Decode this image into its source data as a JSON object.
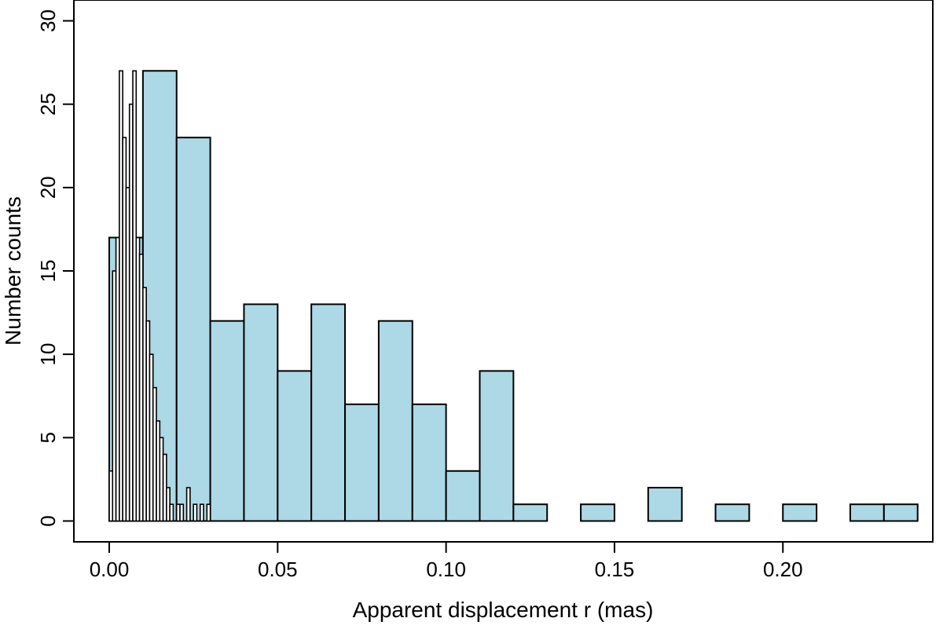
{
  "chart_data": {
    "type": "bar",
    "xlabel": "Apparent displacement r (mas)",
    "ylabel": "Number counts",
    "xlim": [
      -0.0105,
      0.2445
    ],
    "ylim": [
      -1.25,
      31.25
    ],
    "xticks": [
      0.0,
      0.05,
      0.1,
      0.15,
      0.2
    ],
    "xtick_labels": [
      "0.00",
      "0.05",
      "0.10",
      "0.15",
      "0.20"
    ],
    "yticks": [
      0,
      5,
      10,
      15,
      20,
      25,
      30
    ],
    "ytick_labels": [
      "0",
      "5",
      "10",
      "15",
      "20",
      "25",
      "30"
    ],
    "grid": false,
    "series": [
      {
        "fill": "#add8e6",
        "bin_width": 0.01,
        "bin_starts": [
          0.0,
          0.01,
          0.02,
          0.03,
          0.04,
          0.05,
          0.06,
          0.07,
          0.08,
          0.09,
          0.1,
          0.11,
          0.12,
          0.13,
          0.14,
          0.15,
          0.16,
          0.17,
          0.18,
          0.19,
          0.2,
          0.21,
          0.22,
          0.23
        ],
        "values": [
          17,
          27,
          23,
          12,
          13,
          9,
          13,
          7,
          12,
          7,
          3,
          9,
          1,
          0,
          1,
          0,
          2,
          0,
          1,
          0,
          1,
          0,
          1,
          1
        ]
      },
      {
        "fill": "#ffffff",
        "bin_width": 0.001,
        "bin_starts": [
          0.0,
          0.001,
          0.002,
          0.003,
          0.004,
          0.005,
          0.006,
          0.007,
          0.008,
          0.009,
          0.01,
          0.011,
          0.012,
          0.013,
          0.014,
          0.015,
          0.016,
          0.017,
          0.018,
          0.019,
          0.02,
          0.021,
          0.022,
          0.023,
          0.024,
          0.025,
          0.026,
          0.027,
          0.028,
          0.029,
          0.03,
          0.031,
          0.032,
          0.033,
          0.034,
          0.035,
          0.036,
          0.037,
          0.038,
          0.039,
          0.04,
          0.041,
          0.042
        ],
        "values": [
          3,
          15,
          17,
          27,
          23,
          20,
          25,
          27,
          17,
          16,
          14,
          12,
          10,
          8,
          6,
          5,
          4,
          2,
          1,
          0,
          1,
          1,
          0,
          2,
          0,
          1,
          0,
          1,
          0,
          1,
          0,
          0,
          0,
          0,
          0,
          0,
          0,
          0,
          0,
          0,
          0,
          0,
          0
        ]
      }
    ]
  }
}
